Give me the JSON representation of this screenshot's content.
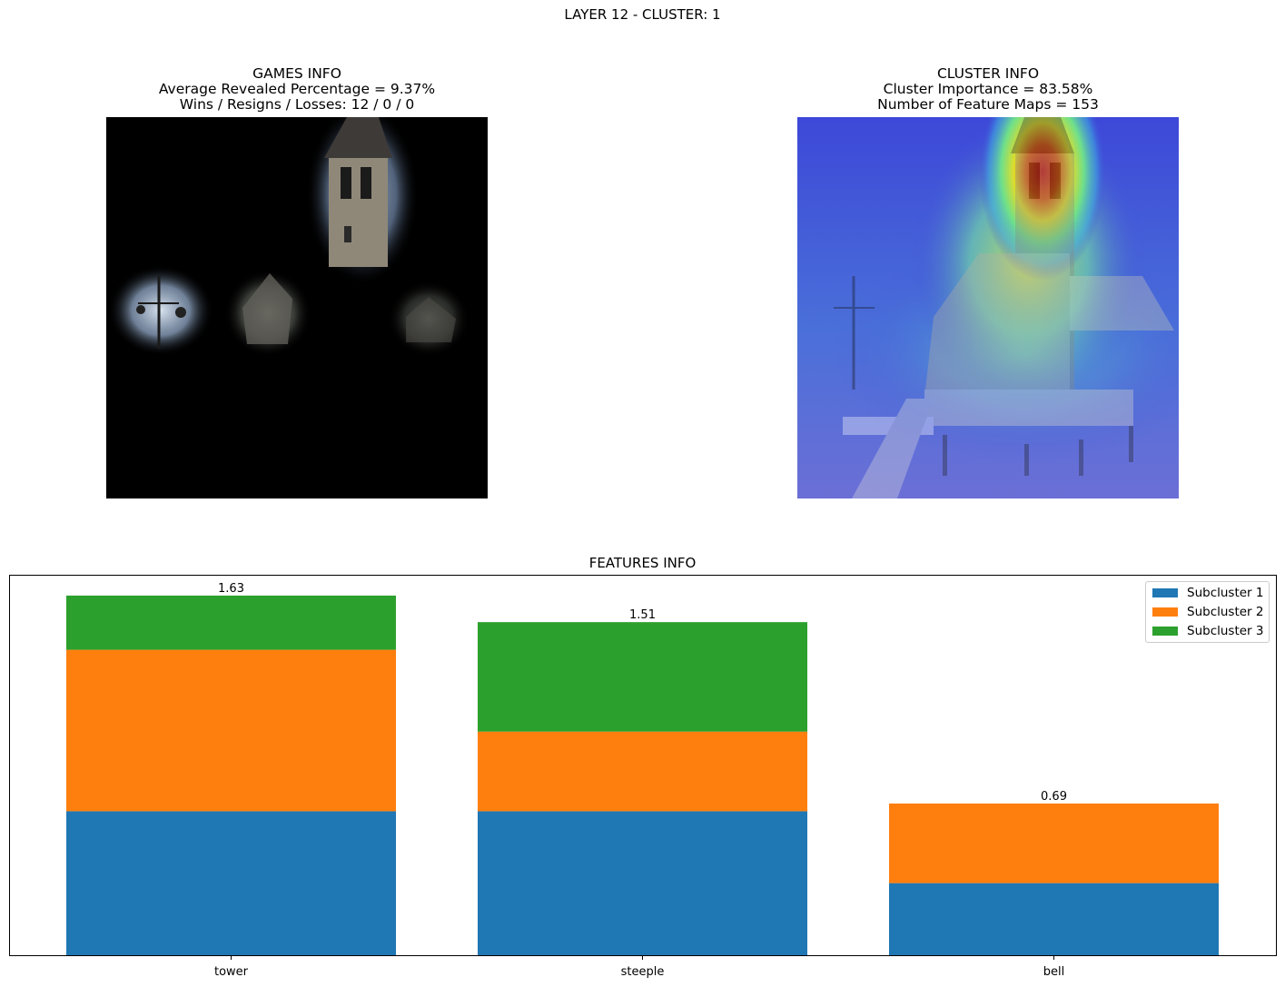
{
  "suptitle": "LAYER 12 - CLUSTER: 1",
  "games_info": {
    "title": "GAMES INFO",
    "avg_revealed": "Average Revealed Percentage = 9.37%",
    "record": "Wins / Resigns / Losses: 12 / 0 / 0"
  },
  "cluster_info": {
    "title": "CLUSTER INFO",
    "importance": "Cluster Importance = 83.58%",
    "feature_maps": "Number of Feature Maps = 153"
  },
  "chart_data": {
    "type": "bar",
    "stacked": true,
    "title": "FEATURES INFO",
    "xlabel": "",
    "ylabel": "",
    "ylim": [
      0,
      1.72
    ],
    "categories": [
      "tower",
      "steeple",
      "bell"
    ],
    "series": [
      {
        "name": "Subcluster 1",
        "color": "#1f77b4",
        "values": [
          0.655,
          0.655,
          0.33
        ]
      },
      {
        "name": "Subcluster 2",
        "color": "#ff7f0e",
        "values": [
          0.73,
          0.36,
          0.36
        ]
      },
      {
        "name": "Subcluster 3",
        "color": "#2ca02c",
        "values": [
          0.245,
          0.495,
          0.0
        ]
      }
    ],
    "totals": [
      "1.63",
      "1.51",
      "0.69"
    ],
    "legend_position": "upper-right",
    "yticks_visible": false,
    "grid": false
  }
}
